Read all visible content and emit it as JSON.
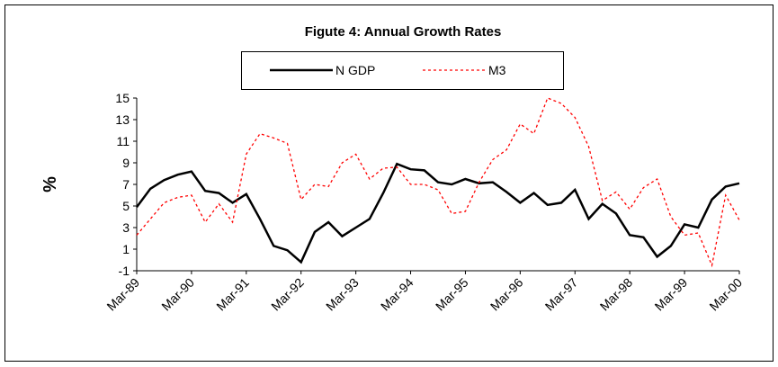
{
  "chart_data": {
    "type": "line",
    "title": "Figute 4: Annual Growth Rates",
    "y_label": "%",
    "categories": [
      "Mar-89",
      null,
      null,
      null,
      "Mar-90",
      null,
      null,
      null,
      "Mar-91",
      null,
      null,
      null,
      "Mar-92",
      null,
      null,
      null,
      "Mar-93",
      null,
      null,
      null,
      "Mar-94",
      null,
      null,
      null,
      "Mar-95",
      null,
      null,
      null,
      "Mar-96",
      null,
      null,
      null,
      "Mar-97",
      null,
      null,
      null,
      "Mar-98",
      null,
      null,
      null,
      "Mar-99",
      null,
      null,
      null,
      "Mar-00"
    ],
    "series": [
      {
        "name": "N GDP",
        "color": "#000000",
        "dash": false,
        "values": [
          4.9,
          6.6,
          7.4,
          7.9,
          8.2,
          6.4,
          6.2,
          5.3,
          6.1,
          3.8,
          1.3,
          0.9,
          -0.2,
          2.6,
          3.5,
          2.2,
          3.0,
          3.8,
          6.2,
          8.9,
          8.4,
          8.3,
          7.2,
          7.0,
          7.5,
          7.1,
          7.2,
          6.3,
          5.3,
          6.2,
          5.1,
          5.3,
          6.5,
          3.8,
          5.2,
          4.3,
          2.3,
          2.1,
          0.3,
          1.3,
          3.3,
          3.0,
          5.6,
          6.8,
          7.1
        ]
      },
      {
        "name": "M3",
        "color": "#ff0000",
        "dash": true,
        "values": [
          2.3,
          3.8,
          5.3,
          5.8,
          6.0,
          3.5,
          5.2,
          3.5,
          9.8,
          11.7,
          11.3,
          10.8,
          5.6,
          7.0,
          6.8,
          9.0,
          9.8,
          7.5,
          8.5,
          8.6,
          7.0,
          7.0,
          6.5,
          4.3,
          4.5,
          7.2,
          9.3,
          10.2,
          12.6,
          11.7,
          15.0,
          14.5,
          13.2,
          10.5,
          5.5,
          6.3,
          4.7,
          6.7,
          7.5,
          4.0,
          2.3,
          2.5,
          -0.5,
          6.0,
          3.7
        ]
      }
    ],
    "ylim": [
      -1,
      15
    ],
    "yticks": [
      -1,
      1,
      3,
      5,
      7,
      9,
      11,
      13,
      15
    ],
    "grid": false,
    "legend": "top"
  }
}
